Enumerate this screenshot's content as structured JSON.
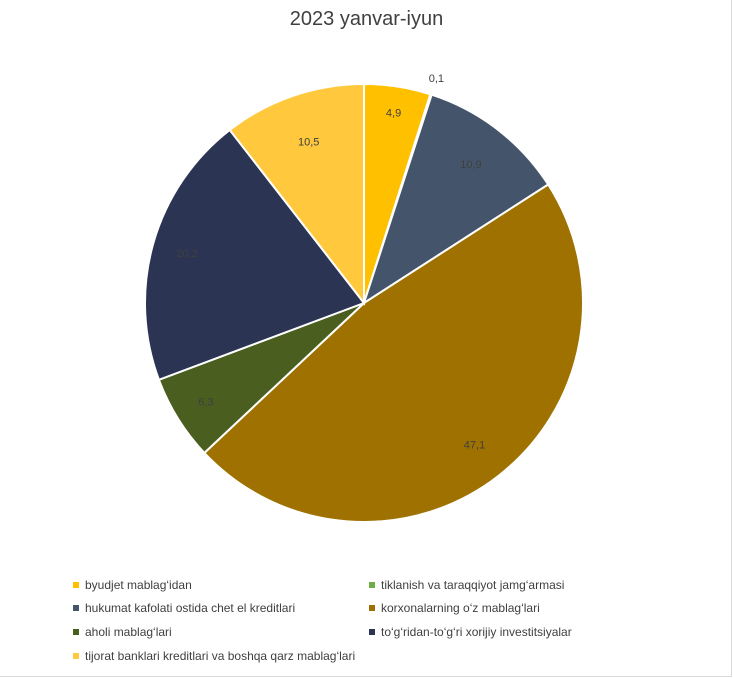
{
  "chart_data": {
    "type": "pie",
    "title": "2023 yanvar-iyun",
    "slices": [
      {
        "label": "byudjet mablag‘idan",
        "value": 4.9,
        "value_label": "4,9",
        "color": "#FFC000"
      },
      {
        "label": "tiklanish va taraqqiyot jamg‘armasi",
        "value": 0.1,
        "value_label": "0,1",
        "color": "#70AD47"
      },
      {
        "label": "hukumat kafolati ostida chet el kreditlari",
        "value": 10.9,
        "value_label": "10,9",
        "color": "#44546A"
      },
      {
        "label": "korxonalarning o‘z mablag‘lari",
        "value": 47.1,
        "value_label": "47,1",
        "color": "#9E7100"
      },
      {
        "label": "aholi mablag‘lari",
        "value": 6.3,
        "value_label": "6,3",
        "color": "#4A5E1F"
      },
      {
        "label": "to‘g‘ridan-to‘g‘ri xorijiy investitsiyalar",
        "value": 20.2,
        "value_label": "20,2",
        "color": "#2B3553"
      },
      {
        "label": "tijorat banklari kreditlari va boshqa qarz mablag‘lari",
        "value": 10.5,
        "value_label": "10,5",
        "color": "#FFC83D"
      }
    ],
    "legend_placement": "bottom"
  }
}
